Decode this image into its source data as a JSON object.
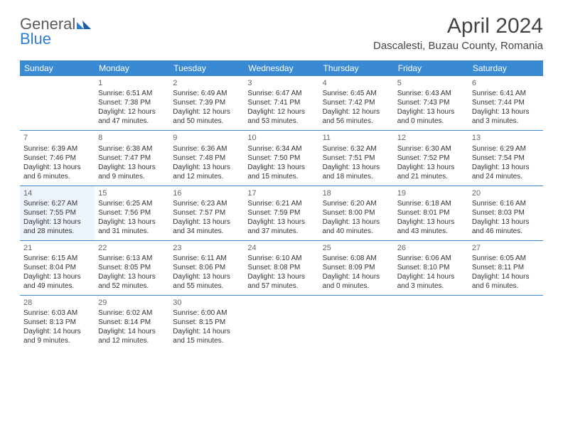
{
  "logo": {
    "text1": "General",
    "text2": "Blue"
  },
  "title": "April 2024",
  "location": "Dascalesti, Buzau County, Romania",
  "colors": {
    "header_bg": "#3a8ad3",
    "header_text": "#ffffff",
    "rule": "#3a8ad3",
    "title_text": "#444444",
    "body_text": "#333333",
    "logo_grey": "#5a5a5a",
    "logo_blue": "#2e7cd1",
    "highlight_bg": "#eef4fb"
  },
  "weekdays": [
    "Sunday",
    "Monday",
    "Tuesday",
    "Wednesday",
    "Thursday",
    "Friday",
    "Saturday"
  ],
  "weeks": [
    [
      {
        "day": "",
        "lines": []
      },
      {
        "day": "1",
        "lines": [
          "Sunrise: 6:51 AM",
          "Sunset: 7:38 PM",
          "Daylight: 12 hours",
          "and 47 minutes."
        ]
      },
      {
        "day": "2",
        "lines": [
          "Sunrise: 6:49 AM",
          "Sunset: 7:39 PM",
          "Daylight: 12 hours",
          "and 50 minutes."
        ]
      },
      {
        "day": "3",
        "lines": [
          "Sunrise: 6:47 AM",
          "Sunset: 7:41 PM",
          "Daylight: 12 hours",
          "and 53 minutes."
        ]
      },
      {
        "day": "4",
        "lines": [
          "Sunrise: 6:45 AM",
          "Sunset: 7:42 PM",
          "Daylight: 12 hours",
          "and 56 minutes."
        ]
      },
      {
        "day": "5",
        "lines": [
          "Sunrise: 6:43 AM",
          "Sunset: 7:43 PM",
          "Daylight: 13 hours",
          "and 0 minutes."
        ]
      },
      {
        "day": "6",
        "lines": [
          "Sunrise: 6:41 AM",
          "Sunset: 7:44 PM",
          "Daylight: 13 hours",
          "and 3 minutes."
        ]
      }
    ],
    [
      {
        "day": "7",
        "lines": [
          "Sunrise: 6:39 AM",
          "Sunset: 7:46 PM",
          "Daylight: 13 hours",
          "and 6 minutes."
        ]
      },
      {
        "day": "8",
        "lines": [
          "Sunrise: 6:38 AM",
          "Sunset: 7:47 PM",
          "Daylight: 13 hours",
          "and 9 minutes."
        ]
      },
      {
        "day": "9",
        "lines": [
          "Sunrise: 6:36 AM",
          "Sunset: 7:48 PM",
          "Daylight: 13 hours",
          "and 12 minutes."
        ]
      },
      {
        "day": "10",
        "lines": [
          "Sunrise: 6:34 AM",
          "Sunset: 7:50 PM",
          "Daylight: 13 hours",
          "and 15 minutes."
        ]
      },
      {
        "day": "11",
        "lines": [
          "Sunrise: 6:32 AM",
          "Sunset: 7:51 PM",
          "Daylight: 13 hours",
          "and 18 minutes."
        ]
      },
      {
        "day": "12",
        "lines": [
          "Sunrise: 6:30 AM",
          "Sunset: 7:52 PM",
          "Daylight: 13 hours",
          "and 21 minutes."
        ]
      },
      {
        "day": "13",
        "lines": [
          "Sunrise: 6:29 AM",
          "Sunset: 7:54 PM",
          "Daylight: 13 hours",
          "and 24 minutes."
        ]
      }
    ],
    [
      {
        "day": "14",
        "lines": [
          "Sunrise: 6:27 AM",
          "Sunset: 7:55 PM",
          "Daylight: 13 hours",
          "and 28 minutes."
        ],
        "hl": true
      },
      {
        "day": "15",
        "lines": [
          "Sunrise: 6:25 AM",
          "Sunset: 7:56 PM",
          "Daylight: 13 hours",
          "and 31 minutes."
        ]
      },
      {
        "day": "16",
        "lines": [
          "Sunrise: 6:23 AM",
          "Sunset: 7:57 PM",
          "Daylight: 13 hours",
          "and 34 minutes."
        ]
      },
      {
        "day": "17",
        "lines": [
          "Sunrise: 6:21 AM",
          "Sunset: 7:59 PM",
          "Daylight: 13 hours",
          "and 37 minutes."
        ]
      },
      {
        "day": "18",
        "lines": [
          "Sunrise: 6:20 AM",
          "Sunset: 8:00 PM",
          "Daylight: 13 hours",
          "and 40 minutes."
        ]
      },
      {
        "day": "19",
        "lines": [
          "Sunrise: 6:18 AM",
          "Sunset: 8:01 PM",
          "Daylight: 13 hours",
          "and 43 minutes."
        ]
      },
      {
        "day": "20",
        "lines": [
          "Sunrise: 6:16 AM",
          "Sunset: 8:03 PM",
          "Daylight: 13 hours",
          "and 46 minutes."
        ]
      }
    ],
    [
      {
        "day": "21",
        "lines": [
          "Sunrise: 6:15 AM",
          "Sunset: 8:04 PM",
          "Daylight: 13 hours",
          "and 49 minutes."
        ]
      },
      {
        "day": "22",
        "lines": [
          "Sunrise: 6:13 AM",
          "Sunset: 8:05 PM",
          "Daylight: 13 hours",
          "and 52 minutes."
        ]
      },
      {
        "day": "23",
        "lines": [
          "Sunrise: 6:11 AM",
          "Sunset: 8:06 PM",
          "Daylight: 13 hours",
          "and 55 minutes."
        ]
      },
      {
        "day": "24",
        "lines": [
          "Sunrise: 6:10 AM",
          "Sunset: 8:08 PM",
          "Daylight: 13 hours",
          "and 57 minutes."
        ]
      },
      {
        "day": "25",
        "lines": [
          "Sunrise: 6:08 AM",
          "Sunset: 8:09 PM",
          "Daylight: 14 hours",
          "and 0 minutes."
        ]
      },
      {
        "day": "26",
        "lines": [
          "Sunrise: 6:06 AM",
          "Sunset: 8:10 PM",
          "Daylight: 14 hours",
          "and 3 minutes."
        ]
      },
      {
        "day": "27",
        "lines": [
          "Sunrise: 6:05 AM",
          "Sunset: 8:11 PM",
          "Daylight: 14 hours",
          "and 6 minutes."
        ]
      }
    ],
    [
      {
        "day": "28",
        "lines": [
          "Sunrise: 6:03 AM",
          "Sunset: 8:13 PM",
          "Daylight: 14 hours",
          "and 9 minutes."
        ]
      },
      {
        "day": "29",
        "lines": [
          "Sunrise: 6:02 AM",
          "Sunset: 8:14 PM",
          "Daylight: 14 hours",
          "and 12 minutes."
        ]
      },
      {
        "day": "30",
        "lines": [
          "Sunrise: 6:00 AM",
          "Sunset: 8:15 PM",
          "Daylight: 14 hours",
          "and 15 minutes."
        ]
      },
      {
        "day": "",
        "lines": []
      },
      {
        "day": "",
        "lines": []
      },
      {
        "day": "",
        "lines": []
      },
      {
        "day": "",
        "lines": []
      }
    ]
  ]
}
